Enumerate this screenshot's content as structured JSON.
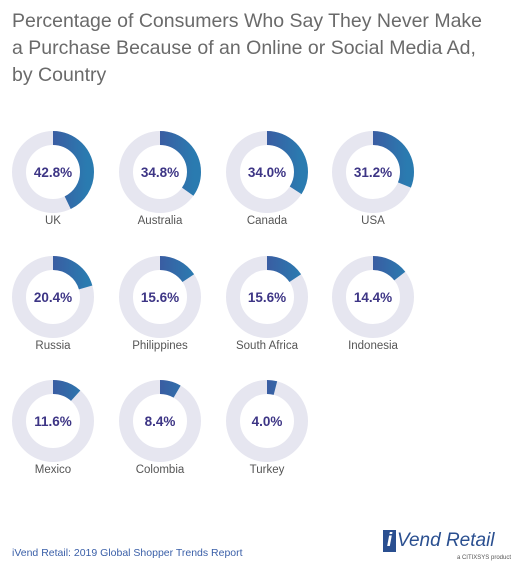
{
  "title": "Percentage of Consumers Who Say They Never Make a Purchase Because of an Online or Social Media Ad, by Country",
  "footer": {
    "source": "iVend Retail: 2019 Global Shopper Trends Report",
    "logo_i": "i",
    "logo_text": "Vend Retail",
    "logo_sub": "a CITIXSYS product"
  },
  "colors": {
    "ring_track": "#e6e6f0",
    "arc_start": "#4a3f94",
    "arc_end": "#2a7bb0",
    "value_text": "#3d3585",
    "label_text": "#555555"
  },
  "chart_data": {
    "type": "donut",
    "title": "Percentage of Consumers Who Say They Never Make a Purchase Because of an Online or Social Media Ad, by Country",
    "unit": "%",
    "ylim": [
      0,
      100
    ],
    "categories": [
      "UK",
      "Australia",
      "Canada",
      "USA",
      "Russia",
      "Philippines",
      "South Africa",
      "Indonesia",
      "Mexico",
      "Colombia",
      "Turkey"
    ],
    "values": [
      42.8,
      34.8,
      34.0,
      31.2,
      20.4,
      15.6,
      15.6,
      14.4,
      11.6,
      8.4,
      4.0
    ],
    "value_labels": [
      "42.8%",
      "34.8%",
      "34.0%",
      "31.2%",
      "20.4%",
      "15.6%",
      "15.6%",
      "14.4%",
      "11.6%",
      "8.4%",
      "4.0%"
    ]
  }
}
